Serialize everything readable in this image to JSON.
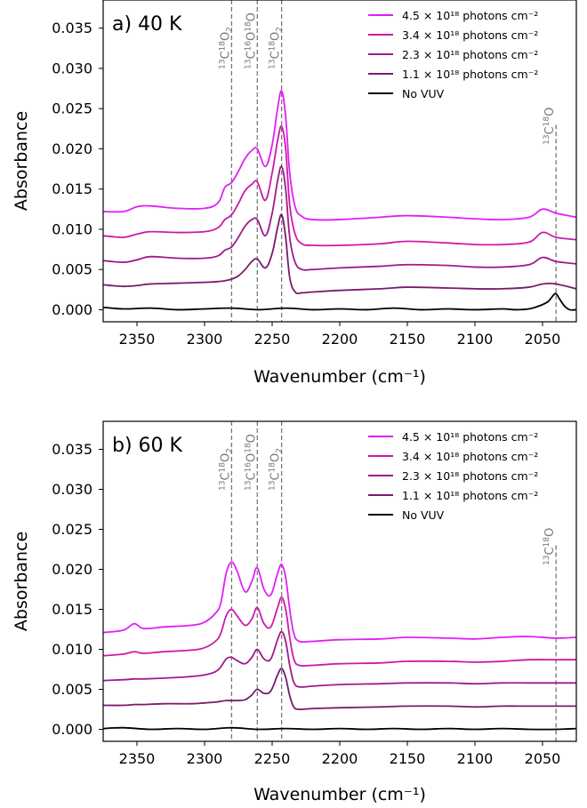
{
  "chart_data": [
    {
      "type": "line",
      "panel_label": "a) 40 K",
      "xlabel": "Wavenumber (cm⁻¹)",
      "ylabel": "Absorbance",
      "xlim": [
        2375,
        2025
      ],
      "ylim": [
        -0.0015,
        0.0385
      ],
      "x_ticks": [
        "2350",
        "2300",
        "2250",
        "2200",
        "2150",
        "2100",
        "2050"
      ],
      "y_ticks": [
        "0.000",
        "0.005",
        "0.010",
        "0.015",
        "0.020",
        "0.025",
        "0.030",
        "0.035"
      ],
      "grid": false,
      "legend": "top-right",
      "markers": [
        {
          "x": 2280,
          "label_main": "C",
          "label_parts": [
            [
              "13",
              "sup"
            ],
            [
              "C",
              ""
            ],
            [
              "18",
              "sup"
            ],
            [
              "O",
              ""
            ],
            [
              "2",
              "sub"
            ]
          ]
        },
        {
          "x": 2261,
          "label_parts": [
            [
              "13",
              "sup"
            ],
            [
              "C",
              ""
            ],
            [
              "16",
              "sup"
            ],
            [
              "O",
              ""
            ],
            [
              "18",
              "sup"
            ],
            [
              "O",
              ""
            ]
          ]
        },
        {
          "x": 2243,
          "label_parts": [
            [
              "13",
              "sup"
            ],
            [
              "C",
              ""
            ],
            [
              "18",
              "sup"
            ],
            [
              "O",
              ""
            ],
            [
              "2",
              "sub"
            ]
          ]
        },
        {
          "x": 2040,
          "short": true,
          "label_parts": [
            [
              "13",
              "sup"
            ],
            [
              "C",
              ""
            ],
            [
              "18",
              "sup"
            ],
            [
              "O",
              ""
            ]
          ]
        }
      ],
      "series": [
        {
          "name": "4.5 × 10¹⁸ photons cm⁻²",
          "color": "#e020f5",
          "x": [
            2375,
            2360,
            2350,
            2340,
            2320,
            2300,
            2290,
            2285,
            2280,
            2275,
            2270,
            2265,
            2261,
            2255,
            2250,
            2246,
            2243,
            2240,
            2237,
            2233,
            2228,
            2220,
            2200,
            2170,
            2150,
            2120,
            2100,
            2080,
            2060,
            2050,
            2040,
            2025
          ],
          "y": [
            0.0122,
            0.0122,
            0.0128,
            0.0129,
            0.0126,
            0.0126,
            0.0133,
            0.0152,
            0.0158,
            0.0172,
            0.0188,
            0.0198,
            0.02,
            0.0178,
            0.0205,
            0.025,
            0.0272,
            0.024,
            0.017,
            0.0128,
            0.0116,
            0.0112,
            0.0112,
            0.0115,
            0.0117,
            0.0115,
            0.0113,
            0.0112,
            0.0115,
            0.0125,
            0.012,
            0.0115
          ]
        },
        {
          "name": "3.4 × 10¹⁸ photons cm⁻²",
          "color": "#cc1aa8",
          "x": [
            2375,
            2360,
            2350,
            2340,
            2320,
            2300,
            2290,
            2285,
            2280,
            2275,
            2270,
            2265,
            2261,
            2255,
            2250,
            2246,
            2243,
            2240,
            2237,
            2233,
            2228,
            2220,
            2200,
            2170,
            2150,
            2120,
            2100,
            2080,
            2060,
            2050,
            2040,
            2025
          ],
          "y": [
            0.0092,
            0.009,
            0.0094,
            0.0097,
            0.0096,
            0.0097,
            0.0102,
            0.0112,
            0.0118,
            0.0132,
            0.0148,
            0.0156,
            0.0159,
            0.0136,
            0.017,
            0.021,
            0.0228,
            0.02,
            0.013,
            0.0094,
            0.0082,
            0.008,
            0.008,
            0.0082,
            0.0085,
            0.0083,
            0.0081,
            0.0081,
            0.0084,
            0.0096,
            0.009,
            0.0087
          ]
        },
        {
          "name": "2.3 × 10¹⁸ photons cm⁻²",
          "color": "#a01a8a",
          "x": [
            2375,
            2360,
            2350,
            2340,
            2320,
            2300,
            2290,
            2285,
            2280,
            2275,
            2270,
            2265,
            2261,
            2255,
            2250,
            2246,
            2243,
            2240,
            2237,
            2233,
            2228,
            2220,
            2200,
            2170,
            2150,
            2120,
            2100,
            2080,
            2060,
            2050,
            2040,
            2025
          ],
          "y": [
            0.0061,
            0.0059,
            0.0062,
            0.0066,
            0.0064,
            0.0064,
            0.0067,
            0.0074,
            0.0078,
            0.009,
            0.0104,
            0.0112,
            0.0112,
            0.0092,
            0.012,
            0.016,
            0.0178,
            0.015,
            0.009,
            0.0059,
            0.005,
            0.005,
            0.0052,
            0.0054,
            0.0056,
            0.0055,
            0.0053,
            0.0053,
            0.0056,
            0.0065,
            0.006,
            0.0057
          ]
        },
        {
          "name": "1.1 × 10¹⁸ photons cm⁻²",
          "color": "#7a1a6e",
          "x": [
            2375,
            2360,
            2350,
            2340,
            2320,
            2300,
            2290,
            2285,
            2280,
            2275,
            2270,
            2265,
            2261,
            2255,
            2250,
            2246,
            2243,
            2240,
            2237,
            2233,
            2228,
            2220,
            2200,
            2170,
            2150,
            2120,
            2100,
            2080,
            2060,
            2050,
            2040,
            2025
          ],
          "y": [
            0.0031,
            0.0029,
            0.003,
            0.0032,
            0.0033,
            0.0034,
            0.0035,
            0.0036,
            0.0038,
            0.0042,
            0.005,
            0.006,
            0.0063,
            0.0052,
            0.007,
            0.0102,
            0.0118,
            0.009,
            0.004,
            0.0022,
            0.0021,
            0.0022,
            0.0024,
            0.0026,
            0.0028,
            0.0027,
            0.0026,
            0.0026,
            0.0028,
            0.0032,
            0.0032,
            0.0026
          ]
        },
        {
          "name": "No VUV",
          "color": "#000000",
          "x": [
            2375,
            2360,
            2340,
            2320,
            2300,
            2280,
            2260,
            2240,
            2220,
            2200,
            2180,
            2160,
            2140,
            2120,
            2100,
            2080,
            2070,
            2060,
            2052,
            2046,
            2042,
            2040,
            2038,
            2034,
            2030,
            2025
          ],
          "y": [
            0.0003,
            0.0001,
            0.0002,
            0.0,
            0.0001,
            0.0002,
            0.0,
            0.0002,
            0.0,
            0.0001,
            0.0,
            0.0002,
            0.0,
            0.0001,
            0.0,
            0.0001,
            0.0,
            0.0001,
            0.0005,
            0.001,
            0.0018,
            0.002,
            0.0015,
            0.0005,
            0.0,
            0.0
          ]
        }
      ]
    },
    {
      "type": "line",
      "panel_label": "b) 60 K",
      "xlabel": "Wavenumber (cm⁻¹)",
      "ylabel": "Absorbance",
      "xlim": [
        2375,
        2025
      ],
      "ylim": [
        -0.0015,
        0.0385
      ],
      "x_ticks": [
        "2350",
        "2300",
        "2250",
        "2200",
        "2150",
        "2100",
        "2050"
      ],
      "y_ticks": [
        "0.000",
        "0.005",
        "0.010",
        "0.015",
        "0.020",
        "0.025",
        "0.030",
        "0.035"
      ],
      "grid": false,
      "legend": "top-right",
      "markers": [
        {
          "x": 2280,
          "label_parts": [
            [
              "13",
              "sup"
            ],
            [
              "C",
              ""
            ],
            [
              "18",
              "sup"
            ],
            [
              "O",
              ""
            ],
            [
              "2",
              "sub"
            ]
          ]
        },
        {
          "x": 2261,
          "label_parts": [
            [
              "13",
              "sup"
            ],
            [
              "C",
              ""
            ],
            [
              "16",
              "sup"
            ],
            [
              "O",
              ""
            ],
            [
              "18",
              "sup"
            ],
            [
              "O",
              ""
            ]
          ]
        },
        {
          "x": 2243,
          "label_parts": [
            [
              "13",
              "sup"
            ],
            [
              "C",
              ""
            ],
            [
              "18",
              "sup"
            ],
            [
              "O",
              ""
            ],
            [
              "2",
              "sub"
            ]
          ]
        },
        {
          "x": 2040,
          "short": true,
          "label_parts": [
            [
              "13",
              "sup"
            ],
            [
              "C",
              ""
            ],
            [
              "18",
              "sup"
            ],
            [
              "O",
              ""
            ]
          ]
        }
      ],
      "series": [
        {
          "name": "4.5 × 10¹⁸ photons cm⁻²",
          "color": "#e020f5",
          "x": [
            2375,
            2360,
            2352,
            2345,
            2330,
            2310,
            2300,
            2292,
            2288,
            2284,
            2280,
            2276,
            2270,
            2265,
            2261,
            2256,
            2251,
            2246,
            2243,
            2240,
            2237,
            2234,
            2230,
            2220,
            2200,
            2170,
            2150,
            2120,
            2100,
            2080,
            2060,
            2040,
            2025
          ],
          "y": [
            0.0121,
            0.0124,
            0.0132,
            0.0126,
            0.0128,
            0.013,
            0.0134,
            0.0145,
            0.0158,
            0.0195,
            0.0209,
            0.0198,
            0.0172,
            0.0185,
            0.0202,
            0.0175,
            0.0168,
            0.0195,
            0.0206,
            0.019,
            0.015,
            0.012,
            0.011,
            0.011,
            0.0112,
            0.0113,
            0.0115,
            0.0114,
            0.0113,
            0.0115,
            0.0116,
            0.0114,
            0.0115
          ]
        },
        {
          "name": "3.4 × 10¹⁸ photons cm⁻²",
          "color": "#cc1aa8",
          "x": [
            2375,
            2360,
            2352,
            2345,
            2330,
            2310,
            2300,
            2292,
            2288,
            2284,
            2280,
            2276,
            2270,
            2265,
            2261,
            2256,
            2251,
            2246,
            2243,
            2240,
            2237,
            2234,
            2230,
            2220,
            2200,
            2170,
            2150,
            2120,
            2100,
            2080,
            2060,
            2040,
            2025
          ],
          "y": [
            0.0092,
            0.0094,
            0.0097,
            0.0095,
            0.0097,
            0.0099,
            0.0102,
            0.011,
            0.012,
            0.0142,
            0.015,
            0.0142,
            0.013,
            0.0138,
            0.0152,
            0.0132,
            0.0128,
            0.0152,
            0.0165,
            0.015,
            0.0115,
            0.0088,
            0.008,
            0.008,
            0.0082,
            0.0083,
            0.0085,
            0.0085,
            0.0084,
            0.0085,
            0.0087,
            0.0087,
            0.0087
          ]
        },
        {
          "name": "2.3 × 10¹⁸ photons cm⁻²",
          "color": "#a01a8a",
          "x": [
            2375,
            2360,
            2352,
            2345,
            2330,
            2310,
            2300,
            2292,
            2288,
            2284,
            2280,
            2276,
            2270,
            2265,
            2261,
            2256,
            2251,
            2246,
            2243,
            2240,
            2237,
            2234,
            2230,
            2220,
            2200,
            2170,
            2150,
            2120,
            2100,
            2080,
            2060,
            2040,
            2025
          ],
          "y": [
            0.0061,
            0.0062,
            0.0063,
            0.0063,
            0.0064,
            0.0066,
            0.0068,
            0.0072,
            0.0078,
            0.0088,
            0.009,
            0.0086,
            0.0082,
            0.009,
            0.01,
            0.0088,
            0.0088,
            0.0112,
            0.0122,
            0.011,
            0.008,
            0.0059,
            0.0053,
            0.0054,
            0.0056,
            0.0057,
            0.0058,
            0.0058,
            0.0057,
            0.0058,
            0.0058,
            0.0058,
            0.0058
          ]
        },
        {
          "name": "1.1 × 10¹⁸ photons cm⁻²",
          "color": "#7a1a6e",
          "x": [
            2375,
            2360,
            2352,
            2345,
            2330,
            2310,
            2300,
            2292,
            2288,
            2284,
            2280,
            2276,
            2270,
            2265,
            2261,
            2256,
            2251,
            2246,
            2243,
            2240,
            2237,
            2234,
            2230,
            2220,
            2200,
            2170,
            2150,
            2120,
            2100,
            2080,
            2060,
            2040,
            2025
          ],
          "y": [
            0.003,
            0.003,
            0.0031,
            0.0031,
            0.0032,
            0.0032,
            0.0033,
            0.0034,
            0.0035,
            0.0036,
            0.0036,
            0.0036,
            0.0037,
            0.0043,
            0.005,
            0.0045,
            0.0048,
            0.0068,
            0.0076,
            0.0065,
            0.0042,
            0.0028,
            0.0025,
            0.0026,
            0.0027,
            0.0028,
            0.0029,
            0.0029,
            0.0028,
            0.0029,
            0.0029,
            0.0029,
            0.0029
          ]
        },
        {
          "name": "No VUV",
          "color": "#000000",
          "x": [
            2375,
            2360,
            2340,
            2320,
            2300,
            2280,
            2260,
            2240,
            2220,
            2200,
            2180,
            2160,
            2140,
            2120,
            2100,
            2080,
            2060,
            2040,
            2025
          ],
          "y": [
            0.0001,
            0.0002,
            0.0,
            0.0001,
            0.0,
            0.0002,
            0.0,
            0.0001,
            0.0,
            0.0001,
            0.0,
            0.0001,
            0.0,
            0.0001,
            0.0,
            0.0001,
            0.0,
            0.0,
            0.0001
          ]
        }
      ]
    }
  ]
}
